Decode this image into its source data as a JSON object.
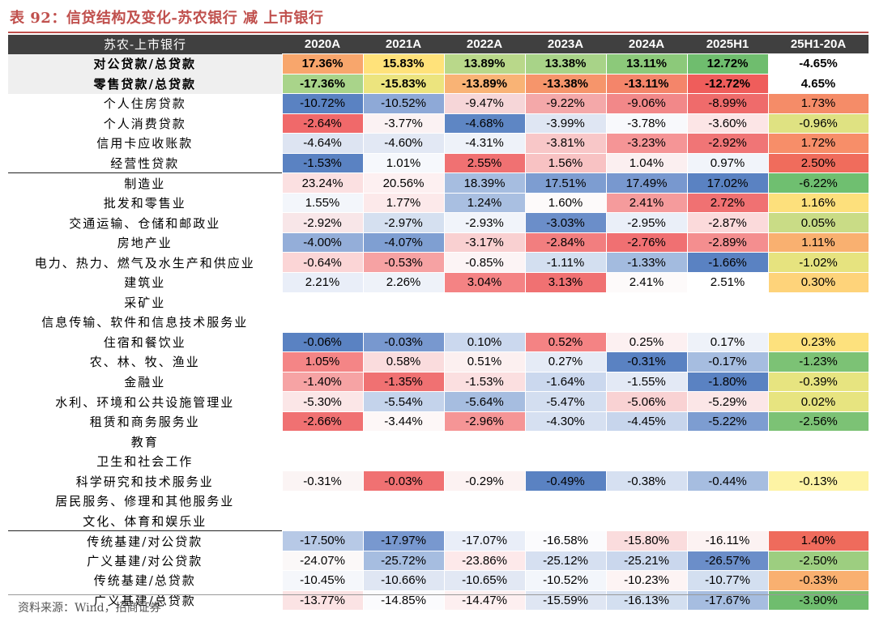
{
  "title": "表 92：信贷结构及变化-苏农银行 减 上市银行",
  "source": "资料来源：Wind，招商证券",
  "headers": [
    "苏农-上市银行",
    "2020A",
    "2021A",
    "2022A",
    "2023A",
    "2024A",
    "2025H1",
    "25H1-20A"
  ],
  "rows": [
    {
      "label": "对公贷款/总贷款",
      "bold": true,
      "sep": false,
      "cells": [
        "17.36%",
        "15.83%",
        "13.89%",
        "13.38%",
        "13.11%",
        "12.72%",
        "-4.65%"
      ],
      "colors": [
        "#f8a66c",
        "#ffe27a",
        "#b9d88a",
        "#a8d388",
        "#8cc97a",
        "#6fbd6e",
        "#ffffff"
      ]
    },
    {
      "label": "零售贷款/总贷款",
      "bold": true,
      "sep": false,
      "cells": [
        "-17.36%",
        "-15.83%",
        "-13.89%",
        "-13.38%",
        "-13.11%",
        "-12.72%",
        "4.65%"
      ],
      "colors": [
        "#a9d48a",
        "#ece47e",
        "#f9b375",
        "#f6956b",
        "#f4856a",
        "#ef5d5b",
        "#ffffff"
      ]
    },
    {
      "label": "个人住房贷款",
      "bold": false,
      "sep": false,
      "cells": [
        "-10.72%",
        "-10.52%",
        "-9.47%",
        "-9.22%",
        "-9.06%",
        "-8.99%",
        "1.73%"
      ],
      "colors": [
        "#5a82c2",
        "#8ea9d7",
        "#f6d6d8",
        "#f4a8a9",
        "#f28889",
        "#ef6b6b",
        "#f58c68"
      ]
    },
    {
      "label": "个人消费贷款",
      "bold": false,
      "sep": false,
      "cells": [
        "-2.64%",
        "-3.77%",
        "-4.68%",
        "-3.99%",
        "-3.78%",
        "-3.60%",
        "-0.96%"
      ],
      "colors": [
        "#f0696a",
        "#fbf2f3",
        "#5e86c4",
        "#dfe6f3",
        "#f8f9fc",
        "#fce5e6",
        "#dfe282"
      ]
    },
    {
      "label": "信用卡应收账款",
      "bold": false,
      "sep": false,
      "cells": [
        "-4.64%",
        "-4.60%",
        "-4.31%",
        "-3.81%",
        "-3.23%",
        "-2.92%",
        "1.72%"
      ],
      "colors": [
        "#dde4f2",
        "#e2e8f4",
        "#eef2f9",
        "#f8c7c8",
        "#f59596",
        "#f07576",
        "#f78e69"
      ]
    },
    {
      "label": "经营性贷款",
      "bold": false,
      "sep": false,
      "cells": [
        "-1.53%",
        "1.01%",
        "2.55%",
        "1.56%",
        "1.04%",
        "0.97%",
        "2.50%"
      ],
      "colors": [
        "#5a82c2",
        "#f6f8fc",
        "#f07172",
        "#f8c2c3",
        "#fbeff0",
        "#f1f4fa",
        "#f06c5c"
      ]
    },
    {
      "label": "制造业",
      "bold": false,
      "sep": true,
      "cells": [
        "23.24%",
        "20.56%",
        "18.39%",
        "17.51%",
        "17.49%",
        "17.02%",
        "-6.22%"
      ],
      "colors": [
        "#fbe0e1",
        "#fdf0f1",
        "#a6bde0",
        "#7d9dd1",
        "#7898cf",
        "#5a82c2",
        "#6fbf70"
      ]
    },
    {
      "label": "批发和零售业",
      "bold": false,
      "sep": false,
      "cells": [
        "1.55%",
        "1.77%",
        "1.24%",
        "1.60%",
        "2.41%",
        "2.72%",
        "1.16%"
      ],
      "colors": [
        "#f3f6fb",
        "#fce9ea",
        "#a9bfe1",
        "#fdfafa",
        "#f59b9c",
        "#f07172",
        "#fde07c"
      ]
    },
    {
      "label": "交通运输、仓储和邮政业",
      "bold": false,
      "sep": false,
      "cells": [
        "-2.92%",
        "-2.97%",
        "-2.93%",
        "-3.03%",
        "-2.95%",
        "-2.87%",
        "0.05%"
      ],
      "colors": [
        "#f8e6e8",
        "#d5e0f0",
        "#f1f4fa",
        "#6b8ec9",
        "#eaeff8",
        "#fbdadb",
        "#c9dc86"
      ]
    },
    {
      "label": "房地产业",
      "bold": false,
      "sep": false,
      "cells": [
        "-4.00%",
        "-4.07%",
        "-3.17%",
        "-2.84%",
        "-2.76%",
        "-2.89%",
        "1.11%"
      ],
      "colors": [
        "#94aed9",
        "#7f9fd2",
        "#f9d0d1",
        "#f27e7f",
        "#f07072",
        "#f48e8f",
        "#f9b070"
      ]
    },
    {
      "label": "电力、热力、燃气及水生产和供应业",
      "bold": false,
      "sep": false,
      "cells": [
        "-0.64%",
        "-0.53%",
        "-0.85%",
        "-1.11%",
        "-1.33%",
        "-1.66%",
        "-1.02%"
      ],
      "colors": [
        "#fbd5d6",
        "#f6a2a3",
        "#fcf4f5",
        "#d3dff0",
        "#a3bbdf",
        "#5a82c2",
        "#e6e37f"
      ]
    },
    {
      "label": "建筑业",
      "bold": false,
      "sep": false,
      "cells": [
        "2.21%",
        "2.26%",
        "3.04%",
        "3.13%",
        "2.41%",
        "2.51%",
        "0.30%"
      ],
      "colors": [
        "#e9eef8",
        "#eef2f9",
        "#f48384",
        "#f07172",
        "#fdfafa",
        "#ffffff",
        "#fed37a"
      ]
    },
    {
      "label": "采矿业",
      "bold": false,
      "sep": false,
      "cells": [
        "",
        "",
        "",
        "",
        "",
        "",
        ""
      ],
      "colors": [
        "#ffffff",
        "#ffffff",
        "#ffffff",
        "#ffffff",
        "#ffffff",
        "#ffffff",
        "#ffffff"
      ]
    },
    {
      "label": "信息传输、软件和信息技术服务业",
      "bold": false,
      "sep": false,
      "cells": [
        "",
        "",
        "",
        "",
        "",
        "",
        ""
      ],
      "colors": [
        "#ffffff",
        "#ffffff",
        "#ffffff",
        "#ffffff",
        "#ffffff",
        "#ffffff",
        "#ffffff"
      ]
    },
    {
      "label": "住宿和餐饮业",
      "bold": false,
      "sep": false,
      "cells": [
        "-0.06%",
        "-0.03%",
        "0.10%",
        "0.52%",
        "0.25%",
        "0.17%",
        "0.23%"
      ],
      "colors": [
        "#5a82c2",
        "#7898cf",
        "#cbd8ee",
        "#f48384",
        "#fcf0f1",
        "#eef2f9",
        "#fde17d"
      ]
    },
    {
      "label": "农、林、牧、渔业",
      "bold": false,
      "sep": false,
      "cells": [
        "1.05%",
        "0.58%",
        "0.51%",
        "0.27%",
        "-0.31%",
        "-0.17%",
        "-1.23%"
      ],
      "colors": [
        "#f48586",
        "#fadcdd",
        "#fcf0f0",
        "#e5ebf6",
        "#5a82c2",
        "#a6bde0",
        "#7cc275"
      ]
    },
    {
      "label": "金融业",
      "bold": false,
      "sep": false,
      "cells": [
        "-1.40%",
        "-1.35%",
        "-1.53%",
        "-1.64%",
        "-1.55%",
        "-1.80%",
        "-0.39%"
      ],
      "colors": [
        "#f6a3a4",
        "#f07172",
        "#fbdfe0",
        "#cbd8ee",
        "#e3e9f5",
        "#5a82c2",
        "#e7e480"
      ]
    },
    {
      "label": "水利、环境和公共设施管理业",
      "bold": false,
      "sep": false,
      "cells": [
        "-5.30%",
        "-5.54%",
        "-5.64%",
        "-5.47%",
        "-5.06%",
        "-5.29%",
        "0.02%"
      ],
      "colors": [
        "#fbe6e7",
        "#c4d3eb",
        "#a6bde0",
        "#d3def0",
        "#f9d2d3",
        "#fbe6e7",
        "#e7e480"
      ]
    },
    {
      "label": "租赁和商务服务业",
      "bold": false,
      "sep": false,
      "cells": [
        "-2.66%",
        "-3.44%",
        "-2.96%",
        "-4.30%",
        "-4.45%",
        "-5.22%",
        "-2.56%"
      ],
      "colors": [
        "#f07172",
        "#fdf7f7",
        "#f59596",
        "#d6e0f1",
        "#c7d5ec",
        "#7d9dd1",
        "#7cc275"
      ]
    },
    {
      "label": "教育",
      "bold": false,
      "sep": false,
      "cells": [
        "",
        "",
        "",
        "",
        "",
        "",
        ""
      ],
      "colors": [
        "#ffffff",
        "#ffffff",
        "#ffffff",
        "#ffffff",
        "#ffffff",
        "#ffffff",
        "#ffffff"
      ]
    },
    {
      "label": "卫生和社会工作",
      "bold": false,
      "sep": false,
      "cells": [
        "",
        "",
        "",
        "",
        "",
        "",
        ""
      ],
      "colors": [
        "#ffffff",
        "#ffffff",
        "#ffffff",
        "#ffffff",
        "#ffffff",
        "#ffffff",
        "#ffffff"
      ]
    },
    {
      "label": "科学研究和技术服务业",
      "bold": false,
      "sep": false,
      "cells": [
        "-0.31%",
        "-0.03%",
        "-0.29%",
        "-0.49%",
        "-0.38%",
        "-0.44%",
        "-0.13%"
      ],
      "colors": [
        "#fbf4f4",
        "#f07172",
        "#fcf2f2",
        "#5a82c2",
        "#d6e0f1",
        "#a6bde0",
        "#fdf3a4"
      ]
    },
    {
      "label": "居民服务、修理和其他服务业",
      "bold": false,
      "sep": false,
      "cells": [
        "",
        "",
        "",
        "",
        "",
        "",
        ""
      ],
      "colors": [
        "#ffffff",
        "#ffffff",
        "#ffffff",
        "#ffffff",
        "#ffffff",
        "#ffffff",
        "#ffffff"
      ]
    },
    {
      "label": "文化、体育和娱乐业",
      "bold": false,
      "sep": false,
      "cells": [
        "",
        "",
        "",
        "",
        "",
        "",
        ""
      ],
      "colors": [
        "#ffffff",
        "#ffffff",
        "#ffffff",
        "#ffffff",
        "#ffffff",
        "#ffffff",
        "#ffffff"
      ]
    },
    {
      "label": "传统基建/对公贷款",
      "bold": false,
      "sep": true,
      "cells": [
        "-17.50%",
        "-17.97%",
        "-17.07%",
        "-16.58%",
        "-15.80%",
        "-16.11%",
        "1.40%"
      ],
      "colors": [
        "#b7c9e6",
        "#7898cf",
        "#e9eef8",
        "#fbfbfd",
        "#fadcdd",
        "#fcf2f2",
        "#ef6b5c"
      ]
    },
    {
      "label": "广义基建/对公贷款",
      "bold": false,
      "sep": false,
      "cells": [
        "-24.07%",
        "-25.72%",
        "-23.86%",
        "-25.12%",
        "-25.21%",
        "-26.57%",
        "-2.50%"
      ],
      "colors": [
        "#fbf8f8",
        "#a6bde0",
        "#fde9ea",
        "#d6e0f1",
        "#cad7ed",
        "#6b8ec9",
        "#9dce80"
      ]
    },
    {
      "label": "传统基建/总贷款",
      "bold": false,
      "sep": false,
      "cells": [
        "-10.45%",
        "-10.66%",
        "-10.65%",
        "-10.52%",
        "-10.23%",
        "-10.77%",
        "-0.33%"
      ],
      "colors": [
        "#f5f7fb",
        "#dfe6f3",
        "#e2e8f4",
        "#f3f6fb",
        "#fdf4f4",
        "#d3dff0",
        "#f9b070"
      ]
    },
    {
      "label": "广义基建/总贷款",
      "bold": false,
      "sep": false,
      "cells": [
        "-13.77%",
        "-14.85%",
        "-14.47%",
        "-15.59%",
        "-16.13%",
        "-17.67%",
        "-3.90%"
      ],
      "colors": [
        "#fbe3e4",
        "#fbfbfd",
        "#fdeff0",
        "#dfe6f3",
        "#d3dff0",
        "#a6bde0",
        "#6fbd6e"
      ]
    }
  ]
}
